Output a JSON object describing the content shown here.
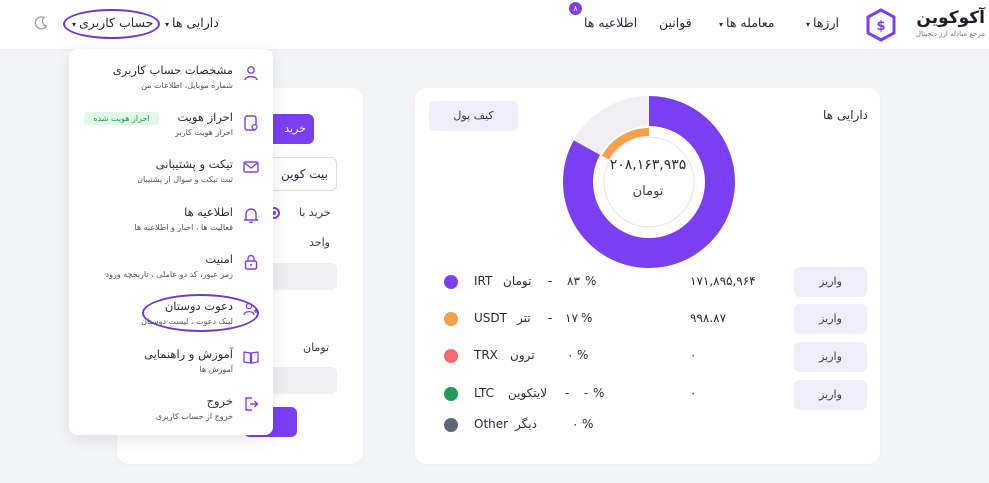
{
  "header": {
    "logo": {
      "title": "آکوکوین",
      "subtitle": "مرجع مبادله ارز دیجیتال"
    },
    "nav": {
      "currencies": "ارزها",
      "trades": "معامله ها",
      "rules": "قوانین",
      "notifications": "اطلاعیه ها",
      "notifications_badge": "۸",
      "assets": "دارایی ها",
      "account": "حساب کاربری"
    },
    "caret": "▾"
  },
  "assets": {
    "title": "دارایی ها",
    "wallet_button": "کیف پول",
    "total_value": "۲۰۸,۱۶۳,۹۳۵",
    "total_unit": "تومان",
    "rows": [
      {
        "symbol": "IRT",
        "name": "تومان",
        "percent": "۸۳",
        "amount": "۱۷۱,۸۹۵,۹۶۴",
        "deposit": "واریز",
        "color": "#7b3ff2"
      },
      {
        "symbol": "USDT",
        "name": "تتر",
        "percent": "۱۷",
        "amount": "۹۹۸.۸۷",
        "deposit": "واریز",
        "color": "#f5a04a"
      },
      {
        "symbol": "TRX",
        "name": "ترون",
        "percent": "۰",
        "amount": "۰",
        "deposit": "واریز",
        "color": "#f46a6a"
      },
      {
        "symbol": "LTC",
        "name": "لایتکوین",
        "percent": "-",
        "amount": "۰",
        "deposit": "واریز",
        "color": "#1f9d55"
      },
      {
        "symbol": "Other",
        "name": "دیگر",
        "percent": "۰",
        "amount": "",
        "deposit": "",
        "color": "#5f6579"
      }
    ],
    "percent_sign": "%",
    "dash": "-"
  },
  "trade": {
    "buy_button": "خرید",
    "coin_select": "بیت کوین",
    "buy_with_label": "خرید با",
    "unit_label": "واحد",
    "toman_label": "تومان"
  },
  "account_menu": {
    "items": [
      {
        "title": "مشخصات حساب کاربری",
        "subtitle": "شماره موبایل، اطلاعات من",
        "icon": "user-icon"
      },
      {
        "title": "احراز هویت",
        "subtitle": "احراز هویت کاربر",
        "icon": "id-card-icon",
        "badge": "احراز هویت شده"
      },
      {
        "title": "تیکت و پشتیبانی",
        "subtitle": "ثبت تیکت و سوال از پشتیبان",
        "icon": "mail-icon"
      },
      {
        "title": "اطلاعیه ها",
        "subtitle": "فعالیت ها ، اخبار و اطلاعیه ها",
        "icon": "bell-icon"
      },
      {
        "title": "امنیت",
        "subtitle": "رمز عبور، کد دو عاملی ، تاریخچه ورود",
        "icon": "lock-icon"
      },
      {
        "title": "دعوت دوستان",
        "subtitle": "لینک دعوت ، لیست دوستان",
        "icon": "users-icon"
      },
      {
        "title": "آموزش و راهنمایی",
        "subtitle": "آموزش ها",
        "icon": "book-icon"
      },
      {
        "title": "خروج",
        "subtitle": "خروج از حساب کاربری",
        "icon": "logout-icon"
      }
    ]
  },
  "colors": {
    "accent": "#7b3ff2",
    "annotation": "#6a39d8",
    "verified": "#1e9e50"
  }
}
